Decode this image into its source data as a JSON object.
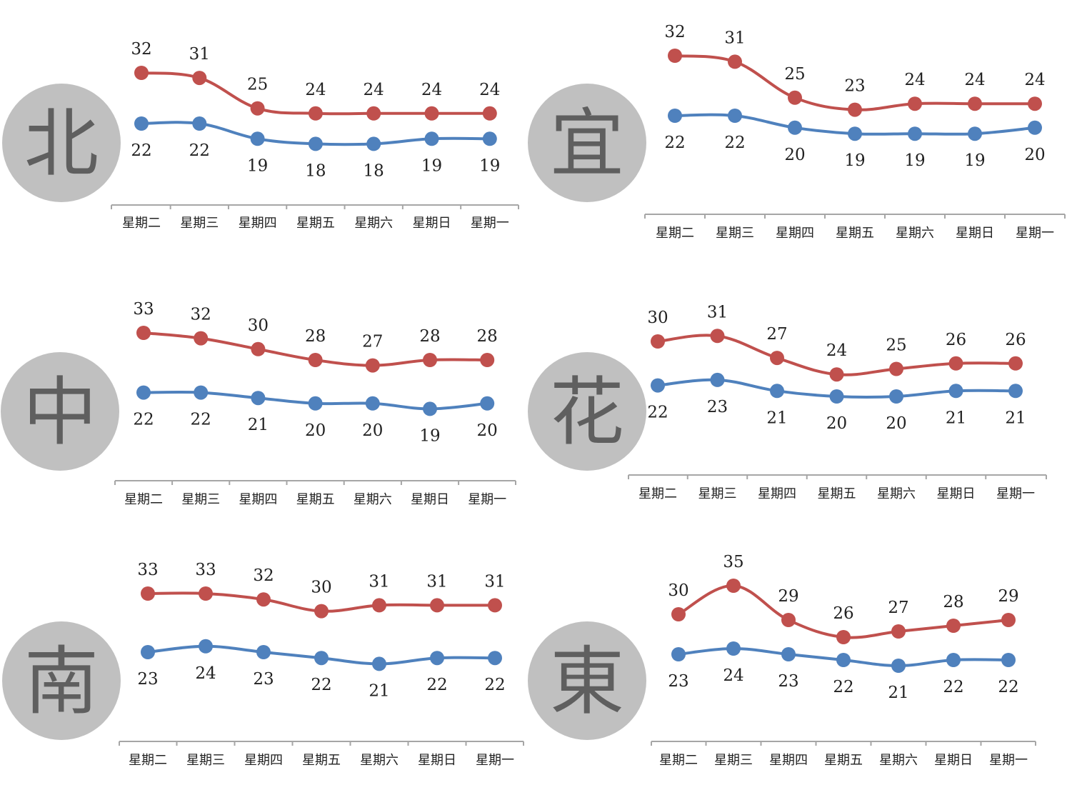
{
  "chart_data": [
    {
      "type": "line",
      "region": "北",
      "categories": [
        "星期二",
        "星期三",
        "星期四",
        "星期五",
        "星期六",
        "星期日",
        "星期一"
      ],
      "series": [
        {
          "values": [
            32,
            31,
            25,
            24,
            24,
            24,
            24
          ],
          "color": "#c0504d"
        },
        {
          "values": [
            22,
            22,
            19,
            18,
            18,
            19,
            19
          ],
          "color": "#4f81bd"
        }
      ]
    },
    {
      "type": "line",
      "region": "宜",
      "categories": [
        "星期二",
        "星期三",
        "星期四",
        "星期五",
        "星期六",
        "星期日",
        "星期一"
      ],
      "series": [
        {
          "values": [
            32,
            31,
            25,
            23,
            24,
            24,
            24
          ],
          "color": "#c0504d"
        },
        {
          "values": [
            22,
            22,
            20,
            19,
            19,
            19,
            20
          ],
          "color": "#4f81bd"
        }
      ]
    },
    {
      "type": "line",
      "region": "中",
      "categories": [
        "星期二",
        "星期三",
        "星期四",
        "星期五",
        "星期六",
        "星期日",
        "星期一"
      ],
      "series": [
        {
          "values": [
            33,
            32,
            30,
            28,
            27,
            28,
            28
          ],
          "color": "#c0504d"
        },
        {
          "values": [
            22,
            22,
            21,
            20,
            20,
            19,
            20
          ],
          "color": "#4f81bd"
        }
      ]
    },
    {
      "type": "line",
      "region": "花",
      "categories": [
        "星期二",
        "星期三",
        "星期四",
        "星期五",
        "星期六",
        "星期日",
        "星期一"
      ],
      "series": [
        {
          "values": [
            30,
            31,
            27,
            24,
            25,
            26,
            26
          ],
          "color": "#c0504d"
        },
        {
          "values": [
            22,
            23,
            21,
            20,
            20,
            21,
            21
          ],
          "color": "#4f81bd"
        }
      ]
    },
    {
      "type": "line",
      "region": "南",
      "categories": [
        "星期二",
        "星期三",
        "星期四",
        "星期五",
        "星期六",
        "星期日",
        "星期一"
      ],
      "series": [
        {
          "values": [
            33,
            33,
            32,
            30,
            31,
            31,
            31
          ],
          "color": "#c0504d"
        },
        {
          "values": [
            23,
            24,
            23,
            22,
            21,
            22,
            22
          ],
          "color": "#4f81bd"
        }
      ]
    },
    {
      "type": "line",
      "region": "東",
      "categories": [
        "星期二",
        "星期三",
        "星期四",
        "星期五",
        "星期六",
        "星期日",
        "星期一"
      ],
      "series": [
        {
          "values": [
            30,
            35,
            29,
            26,
            27,
            28,
            29
          ],
          "color": "#c0504d"
        },
        {
          "values": [
            23,
            24,
            23,
            22,
            21,
            22,
            22
          ],
          "color": "#4f81bd"
        }
      ]
    }
  ],
  "colors": {
    "badge_fill": "#c0c0c0",
    "badge_text": "#5f5f5f",
    "axis": "#a6a6a6"
  }
}
